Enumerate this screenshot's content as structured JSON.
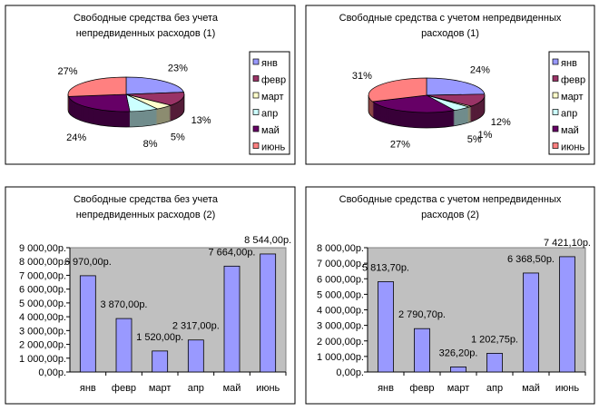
{
  "colors": [
    "#9999FF",
    "#993366",
    "#FFFFCC",
    "#CCFFFF",
    "#660066",
    "#FF8080"
  ],
  "bar_color": "#9999FF",
  "plot_bg": "#C0C0C0",
  "chart_data": [
    {
      "type": "pie",
      "title": [
        "Свободные средства без учета",
        "непредвиденных расходов (1)"
      ],
      "categories": [
        "янв",
        "февр",
        "март",
        "апр",
        "май",
        "июнь"
      ],
      "values": [
        23,
        13,
        5,
        8,
        24,
        27
      ],
      "labels": [
        "23%",
        "13%",
        "5%",
        "8%",
        "24%",
        "27%"
      ],
      "legend": "right"
    },
    {
      "type": "pie",
      "title": [
        "Свободные средства с учетом непредвиденных",
        "расходов (1)"
      ],
      "categories": [
        "янв",
        "февр",
        "март",
        "апр",
        "май",
        "июнь"
      ],
      "values": [
        24,
        12,
        1,
        5,
        27,
        31
      ],
      "labels": [
        "24%",
        "12%",
        "1%",
        "5%",
        "27%",
        "31%"
      ],
      "legend": "right"
    },
    {
      "type": "bar",
      "title": [
        "Свободные средства без учета",
        "непредвиденных расходов (2)"
      ],
      "categories": [
        "янв",
        "февр",
        "март",
        "апр",
        "май",
        "июнь"
      ],
      "values": [
        6970,
        3870,
        1520,
        2317,
        7664,
        8544
      ],
      "labels": [
        "6 970,00р.",
        "3 870,00р.",
        "1 520,00р.",
        "2 317,00р.",
        "7 664,00р.",
        "8 544,00р."
      ],
      "ylim": [
        0,
        9000
      ],
      "yticks": [
        "0,00р.",
        "1 000,00р.",
        "2 000,00р.",
        "3 000,00р.",
        "4 000,00р.",
        "5 000,00р.",
        "6 000,00р.",
        "7 000,00р.",
        "8 000,00р.",
        "9 000,00р."
      ]
    },
    {
      "type": "bar",
      "title": [
        "Свободные средства с учетом непредвиденных",
        "расходов (2)"
      ],
      "categories": [
        "янв",
        "февр",
        "март",
        "апр",
        "май",
        "июнь"
      ],
      "values": [
        5813.7,
        2790.7,
        326.2,
        1202.75,
        6368.5,
        7421.1
      ],
      "labels": [
        "5 813,70р.",
        "2 790,70р.",
        "326,20р.",
        "1 202,75р.",
        "6 368,50р.",
        "7 421,10р."
      ],
      "ylim": [
        0,
        8000
      ],
      "yticks": [
        "0,00р.",
        "1 000,00р.",
        "2 000,00р.",
        "3 000,00р.",
        "4 000,00р.",
        "5 000,00р.",
        "6 000,00р.",
        "7 000,00р.",
        "8 000,00р."
      ]
    }
  ]
}
